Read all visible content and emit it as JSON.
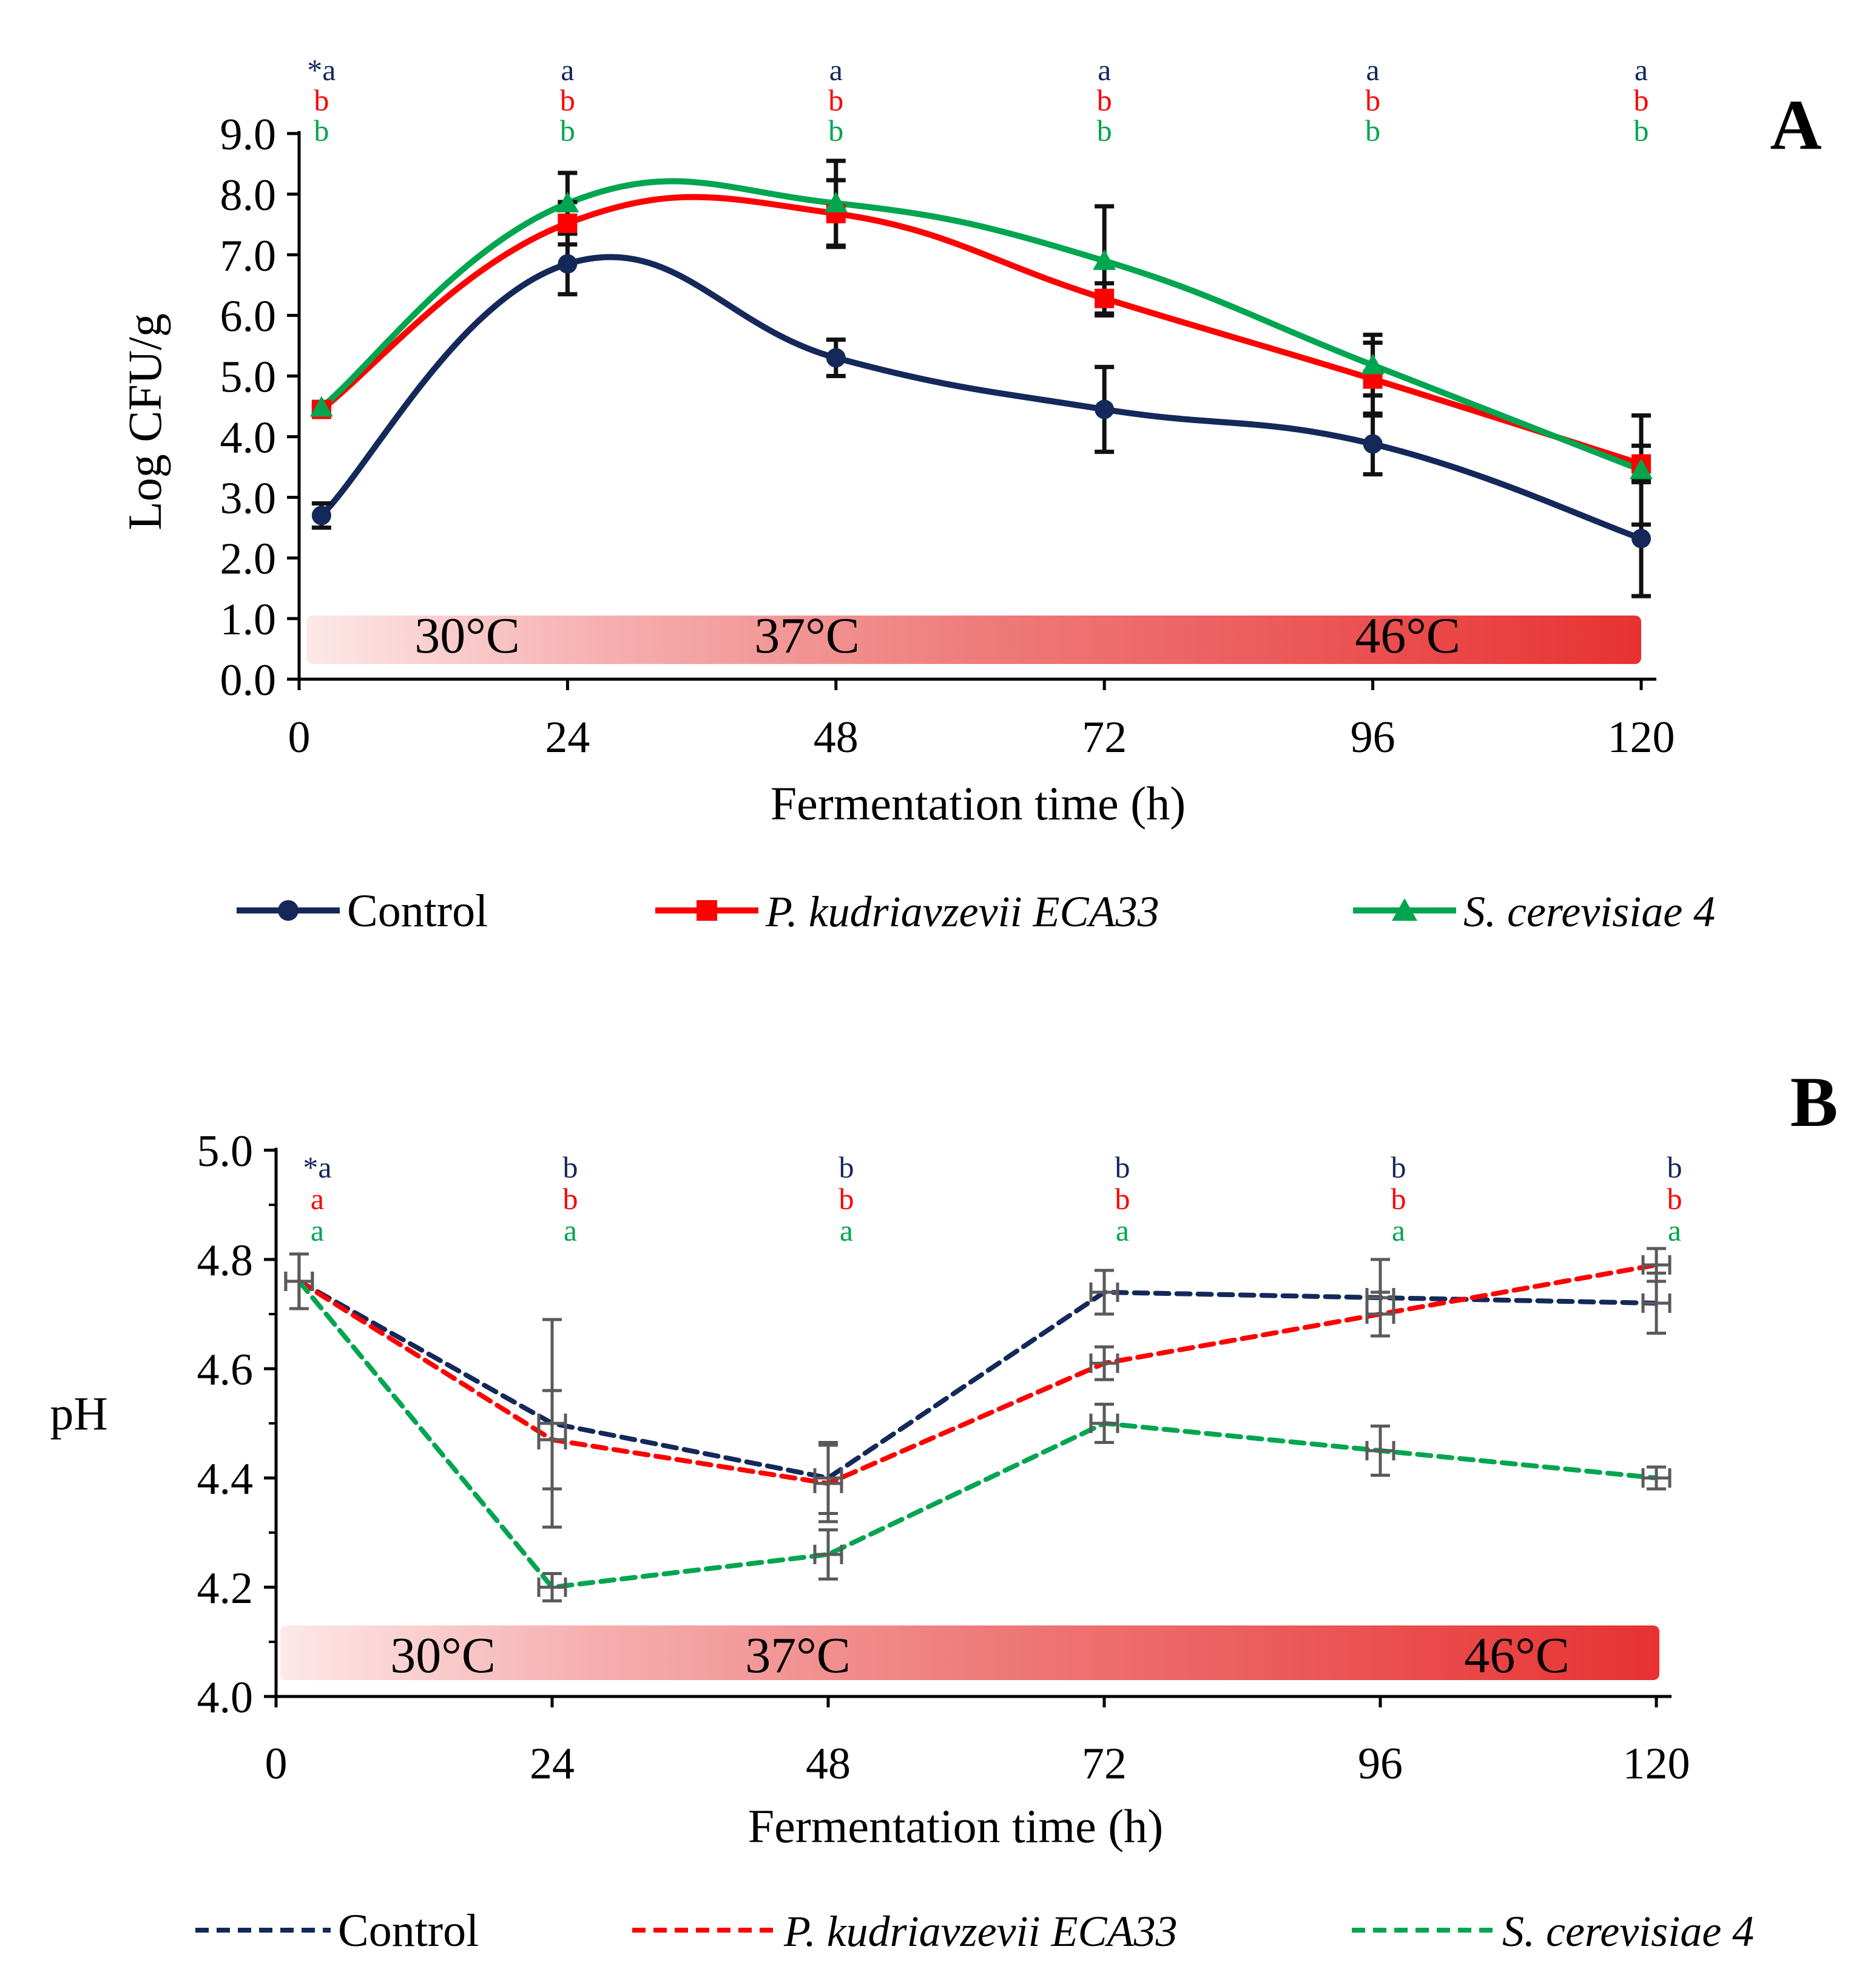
{
  "panel_a_label": "A",
  "panel_b_label": "B",
  "colors": {
    "control": "#14285a",
    "pk": "#ff0000",
    "sc": "#00a54f",
    "error_a": "#111111",
    "error_b": "#5a5a5a",
    "temp_bar_start": "#fde8e8",
    "temp_bar_end": "#e83232"
  },
  "chart_data": [
    {
      "type": "line",
      "panel": "A",
      "xlabel": "Fermentation time (h)",
      "ylabel": "Log CFU/g",
      "xlim": [
        0,
        120
      ],
      "ylim": [
        0,
        9
      ],
      "x_ticks": [
        "0",
        "24",
        "48",
        "72",
        "96",
        "120"
      ],
      "y_ticks": [
        "0.0",
        "1.0",
        "2.0",
        "3.0",
        "4.0",
        "5.0",
        "6.0",
        "7.0",
        "8.0",
        "9.0"
      ],
      "temperature_band": {
        "range": [
          0.25,
          1.05
        ],
        "labels": [
          "30°C",
          "37°C",
          "46°C"
        ]
      },
      "significance": {
        "prefix": "*",
        "x": [
          2,
          24,
          48,
          72,
          96,
          120
        ],
        "rows": [
          {
            "series": "Control",
            "letters": [
              "a",
              "a",
              "a",
              "a",
              "a",
              "a"
            ]
          },
          {
            "series": "P. kudriavzevii ECA33",
            "letters": [
              "b",
              "b",
              "b",
              "b",
              "b",
              "b"
            ]
          },
          {
            "series": "S. cerevisiae 4",
            "letters": [
              "b",
              "b",
              "b",
              "b",
              "b",
              "b"
            ]
          }
        ]
      },
      "series": [
        {
          "name": "Control",
          "x": [
            2,
            24,
            48,
            72,
            96,
            120
          ],
          "values": [
            2.7,
            6.85,
            5.3,
            4.45,
            3.88,
            2.32
          ],
          "errors": [
            0.2,
            0.5,
            0.3,
            0.7,
            0.5,
            0.95
          ]
        },
        {
          "name": "P. kudriavzevii ECA33",
          "x": [
            2,
            24,
            48,
            72,
            96,
            120
          ],
          "values": [
            4.45,
            7.52,
            7.68,
            6.28,
            4.95,
            3.55
          ],
          "errors": [
            0.05,
            0.35,
            0.55,
            0.25,
            0.6,
            0.3
          ]
        },
        {
          "name": "S. cerevisiae 4",
          "x": [
            2,
            24,
            48,
            72,
            96,
            120
          ],
          "values": [
            4.48,
            7.85,
            7.85,
            6.9,
            5.18,
            3.45
          ],
          "errors": [
            0.05,
            0.5,
            0.7,
            0.9,
            0.5,
            0.9
          ]
        }
      ],
      "legend": [
        "Control",
        "P. kudriavzevii ECA33",
        "S. cerevisiae 4"
      ]
    },
    {
      "type": "line",
      "panel": "B",
      "xlabel": "Fermentation time (h)",
      "ylabel": "pH",
      "xlim": [
        0,
        120
      ],
      "ylim": [
        4.0,
        5.0
      ],
      "x_ticks": [
        "0",
        "24",
        "48",
        "72",
        "96",
        "120"
      ],
      "y_ticks": [
        "4.0",
        "4.2",
        "4.4",
        "4.6",
        "4.8",
        "5.0"
      ],
      "temperature_band": {
        "range": [
          4.03,
          4.13
        ],
        "labels": [
          "30°C",
          "37°C",
          "46°C"
        ]
      },
      "significance": {
        "prefix": "*",
        "x": [
          2,
          24,
          48,
          72,
          96,
          120
        ],
        "rows": [
          {
            "series": "Control",
            "letters": [
              "a",
              "b",
              "b",
              "b",
              "b",
              "b"
            ]
          },
          {
            "series": "P. kudriavzevii ECA33",
            "letters": [
              "a",
              "b",
              "b",
              "b",
              "b",
              "b"
            ]
          },
          {
            "series": "S. cerevisiae 4",
            "letters": [
              "a",
              "a",
              "a",
              "a",
              "a",
              "a"
            ]
          }
        ]
      },
      "series": [
        {
          "name": "Control",
          "x": [
            2,
            24,
            48,
            72,
            96,
            120
          ],
          "values": [
            4.76,
            4.5,
            4.4,
            4.74,
            4.73,
            4.72
          ],
          "errors": [
            0.05,
            0.19,
            0.065,
            0.04,
            0.07,
            0.055
          ]
        },
        {
          "name": "P. kudriavzevii ECA33",
          "x": [
            2,
            24,
            48,
            72,
            96,
            120
          ],
          "values": [
            4.76,
            4.47,
            4.39,
            4.61,
            4.7,
            4.79
          ],
          "errors": [
            0.05,
            0.09,
            0.07,
            0.03,
            0.04,
            0.03
          ]
        },
        {
          "name": "S. cerevisiae 4",
          "x": [
            2,
            24,
            48,
            72,
            96,
            120
          ],
          "values": [
            4.76,
            4.2,
            4.26,
            4.5,
            4.45,
            4.4
          ],
          "errors": [
            0.05,
            0.025,
            0.045,
            0.035,
            0.045,
            0.02
          ]
        }
      ],
      "legend": [
        "Control",
        "P. kudriavzevii ECA33",
        "S. cerevisiae 4"
      ]
    }
  ]
}
